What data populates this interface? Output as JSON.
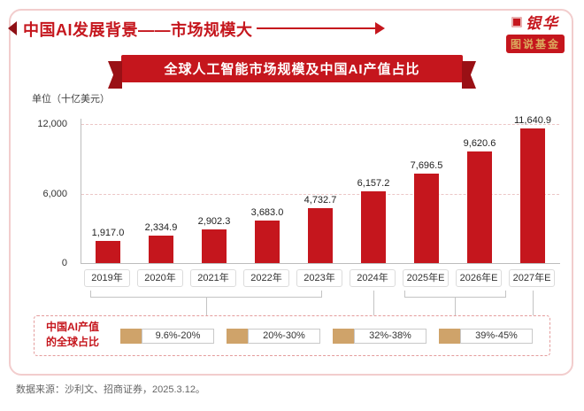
{
  "header": {
    "title": "中国AI发展背景——市场规模大",
    "logo": {
      "brand": "银华",
      "series": "图说基金"
    }
  },
  "banner": {
    "title": "全球人工智能市场规模及中国AI产值占比"
  },
  "chart_data": {
    "type": "bar",
    "title": "全球人工智能市场规模及中国AI产值占比",
    "unit_label": "单位（十亿美元）",
    "categories": [
      "2019年",
      "2020年",
      "2021年",
      "2022年",
      "2023年",
      "2024年",
      "2025年E",
      "2026年E",
      "2027年E"
    ],
    "values": [
      1917.0,
      2334.9,
      2902.3,
      3683.0,
      4732.7,
      6157.2,
      7696.5,
      9620.6,
      11640.9
    ],
    "value_labels": [
      "1,917.0",
      "2,334.9",
      "2,902.3",
      "3,683.0",
      "4,732.7",
      "6,157.2",
      "7,696.5",
      "9,620.6",
      "11,640.9"
    ],
    "ylim": [
      0,
      12000
    ],
    "yticks": [
      {
        "label": "12,000",
        "value": 12000
      },
      {
        "label": "6,000",
        "value": 6000
      },
      {
        "label": "0",
        "value": 0
      }
    ],
    "gridlines": [
      6000,
      12000
    ],
    "bar_color": "#c5161d",
    "legend": "none",
    "grid": "dashed-horizontal"
  },
  "share_panel": {
    "label_line1": "中国AI产值",
    "label_line2": "的全球占比",
    "ranges": [
      "9.6%-20%",
      "20%-30%",
      "32%-38%",
      "39%-45%"
    ],
    "marker_color": "#cfa36a",
    "groups_map": [
      "2019年-2023年",
      "2024年",
      "2025年E-2026年E",
      "2027年E"
    ]
  },
  "footer": {
    "source": "数据来源：沙利文、招商证券，2025.3.12。"
  }
}
